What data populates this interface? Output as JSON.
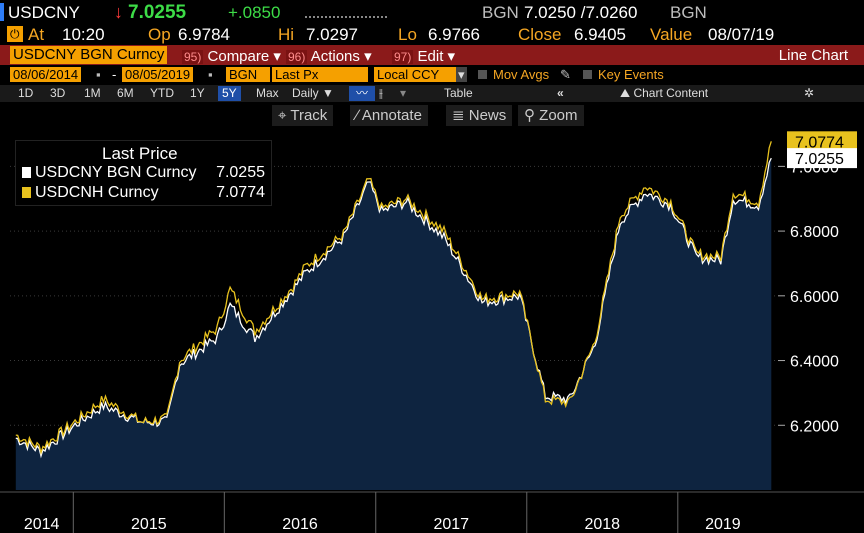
{
  "header": {
    "ticker": "USDCNY",
    "arrow": "↓",
    "last": "7.0255",
    "change": "+.0850",
    "source": "BGN",
    "bid_ask": "7.0250 /7.0260",
    "source2": "BGN",
    "at_label": "At",
    "time": "10:20",
    "op_label": "Op",
    "open": "6.9784",
    "hi_label": "Hi",
    "high": "7.0297",
    "lo_label": "Lo",
    "low": "6.9766",
    "close_label": "Close",
    "close": "6.9405",
    "value_label": "Value",
    "value_date": "08/07/19"
  },
  "menu": {
    "security": "USDCNY BGN Curncy",
    "compare_num": "95)",
    "compare": "Compare",
    "actions_num": "96)",
    "actions": "Actions",
    "edit_num": "97)",
    "edit": "Edit",
    "chart_type": "Line Chart"
  },
  "settings": {
    "start_date": "08/06/2014",
    "end_date": "08/05/2019",
    "source": "BGN",
    "field": "Last Px",
    "currency": "Local CCY",
    "mov_avgs": "Mov Avgs",
    "key_events": "Key Events"
  },
  "periods": [
    "1D",
    "3D",
    "1M",
    "6M",
    "YTD",
    "1Y",
    "5Y",
    "Max"
  ],
  "active_period": "5Y",
  "frequency": "Daily",
  "table_label": "Table",
  "chart_content": "Chart Content",
  "tools": {
    "track": "Track",
    "annotate": "Annotate",
    "news": "News",
    "zoom": "Zoom"
  },
  "colors": {
    "white_series": "#ffffff",
    "gold_series": "#e8c21e",
    "area": "#0e2440",
    "accent": "#f5a623"
  },
  "chart_data": {
    "type": "line",
    "title": "Last Price",
    "series": [
      {
        "name": "USDCNY BGN Curncy",
        "last": "7.0255",
        "x": [
          "2014-08",
          "2014-10",
          "2015-01",
          "2015-03",
          "2015-06",
          "2015-08",
          "2015-09",
          "2015-12",
          "2016-01",
          "2016-03",
          "2016-06",
          "2016-07",
          "2016-10",
          "2016-12",
          "2017-01",
          "2017-03",
          "2017-06",
          "2017-09",
          "2017-12",
          "2018-02",
          "2018-04",
          "2018-06",
          "2018-08",
          "2018-10",
          "2018-12",
          "2019-02",
          "2019-04",
          "2019-05",
          "2019-07",
          "2019-08"
        ],
        "values": [
          6.16,
          6.12,
          6.21,
          6.26,
          6.21,
          6.21,
          6.39,
          6.47,
          6.57,
          6.47,
          6.62,
          6.67,
          6.78,
          6.95,
          6.86,
          6.89,
          6.78,
          6.58,
          6.6,
          6.29,
          6.28,
          6.45,
          6.83,
          6.92,
          6.88,
          6.72,
          6.71,
          6.9,
          6.88,
          7.0255
        ]
      },
      {
        "name": "USDCNH Curncy",
        "last": "7.0774",
        "x": [
          "2014-08",
          "2014-10",
          "2015-01",
          "2015-03",
          "2015-06",
          "2015-08",
          "2015-09",
          "2015-12",
          "2016-01",
          "2016-03",
          "2016-06",
          "2016-07",
          "2016-10",
          "2016-12",
          "2017-01",
          "2017-03",
          "2017-06",
          "2017-09",
          "2017-12",
          "2018-02",
          "2018-04",
          "2018-06",
          "2018-08",
          "2018-10",
          "2018-12",
          "2019-02",
          "2019-04",
          "2019-05",
          "2019-07",
          "2019-08"
        ],
        "values": [
          6.17,
          6.13,
          6.22,
          6.28,
          6.21,
          6.22,
          6.4,
          6.5,
          6.62,
          6.49,
          6.63,
          6.69,
          6.79,
          6.96,
          6.87,
          6.9,
          6.8,
          6.59,
          6.61,
          6.28,
          6.27,
          6.46,
          6.85,
          6.94,
          6.89,
          6.73,
          6.72,
          6.92,
          6.89,
          7.0774
        ]
      }
    ],
    "xaxis": {
      "labels": [
        "2014",
        "2015",
        "2016",
        "2017",
        "2018",
        "2019"
      ]
    },
    "yaxis": {
      "ticks": [
        "6.2000",
        "6.4000",
        "6.6000",
        "6.8000",
        "7.0000"
      ],
      "range": [
        6.0,
        7.1
      ]
    },
    "legend": "top-left"
  }
}
